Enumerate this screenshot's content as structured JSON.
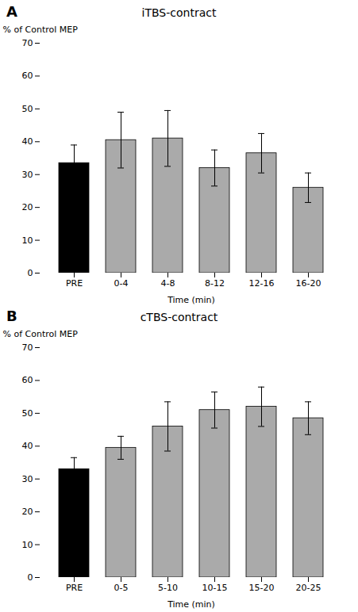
{
  "chart_data": [
    {
      "type": "bar",
      "title": "iTBS-contract",
      "categories": [
        "PRE",
        "0-4",
        "4-8",
        "8-12",
        "12-16",
        "16-20"
      ],
      "values": [
        33.5,
        40.5,
        41.0,
        32.0,
        36.5,
        26.0
      ],
      "errors": [
        5.5,
        8.5,
        8.5,
        5.5,
        6.0,
        4.5
      ],
      "colors": [
        "#000000",
        "#aaaaaa",
        "#aaaaaa",
        "#aaaaaa",
        "#aaaaaa",
        "#aaaaaa"
      ],
      "xlabel": "Time (min)",
      "ylabel": "% of Control MEP",
      "ylim": [
        0,
        70
      ],
      "yticks": [
        0,
        10,
        20,
        30,
        40,
        50,
        60,
        70
      ],
      "annotations": [
        "A"
      ],
      "grid": false
    },
    {
      "type": "bar",
      "title": "cTBS-contract",
      "categories": [
        "PRE",
        "0-5",
        "5-10",
        "10-15",
        "15-20",
        "20-25"
      ],
      "values": [
        33.0,
        39.5,
        46.0,
        51.0,
        52.0,
        48.5
      ],
      "errors": [
        3.5,
        3.5,
        7.5,
        5.5,
        6.0,
        5.0
      ],
      "colors": [
        "#000000",
        "#aaaaaa",
        "#aaaaaa",
        "#aaaaaa",
        "#aaaaaa",
        "#aaaaaa"
      ],
      "xlabel": "Time (min)",
      "ylabel": "% of Control MEP",
      "ylim": [
        0,
        70
      ],
      "yticks": [
        0,
        10,
        20,
        30,
        40,
        50,
        60,
        70
      ],
      "annotations": [
        "B"
      ],
      "grid": false
    }
  ]
}
